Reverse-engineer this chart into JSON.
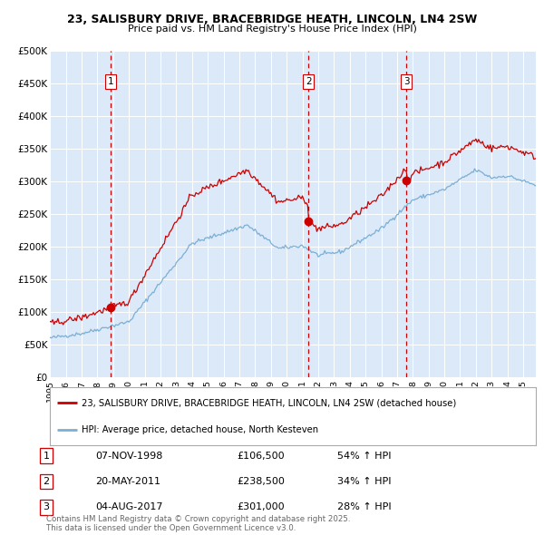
{
  "title1": "23, SALISBURY DRIVE, BRACEBRIDGE HEATH, LINCOLN, LN4 2SW",
  "title2": "Price paid vs. HM Land Registry's House Price Index (HPI)",
  "red_line_label": "23, SALISBURY DRIVE, BRACEBRIDGE HEATH, LINCOLN, LN4 2SW (detached house)",
  "blue_line_label": "HPI: Average price, detached house, North Kesteven",
  "transactions": [
    {
      "num": 1,
      "date": "07-NOV-1998",
      "price": 106500,
      "pct": "54%",
      "dir": "↑"
    },
    {
      "num": 2,
      "date": "20-MAY-2011",
      "price": 238500,
      "pct": "34%",
      "dir": "↑"
    },
    {
      "num": 3,
      "date": "04-AUG-2017",
      "price": 301000,
      "pct": "28%",
      "dir": "↑"
    }
  ],
  "t1": 1998.855,
  "p1": 106500,
  "t2": 2011.38,
  "p2": 238500,
  "t3": 2017.587,
  "p3": 301000,
  "footer": "Contains HM Land Registry data © Crown copyright and database right 2025.\nThis data is licensed under the Open Government Licence v3.0.",
  "plot_bg": "#dce9f8",
  "red_color": "#cc0000",
  "blue_color": "#7bafd4",
  "ylim": [
    0,
    500000
  ],
  "ytick_vals": [
    0,
    50000,
    100000,
    150000,
    200000,
    250000,
    300000,
    350000,
    400000,
    450000,
    500000
  ],
  "ytick_labels": [
    "£0",
    "£50K",
    "£100K",
    "£150K",
    "£200K",
    "£250K",
    "£300K",
    "£350K",
    "£400K",
    "£450K",
    "£500K"
  ],
  "xlim_start": 1995.0,
  "xlim_end": 2025.8,
  "xtick_years": [
    1995,
    1996,
    1997,
    1998,
    1999,
    2000,
    2001,
    2002,
    2003,
    2004,
    2005,
    2006,
    2007,
    2008,
    2009,
    2010,
    2011,
    2012,
    2013,
    2014,
    2015,
    2016,
    2017,
    2018,
    2019,
    2020,
    2021,
    2022,
    2023,
    2024,
    2025
  ]
}
